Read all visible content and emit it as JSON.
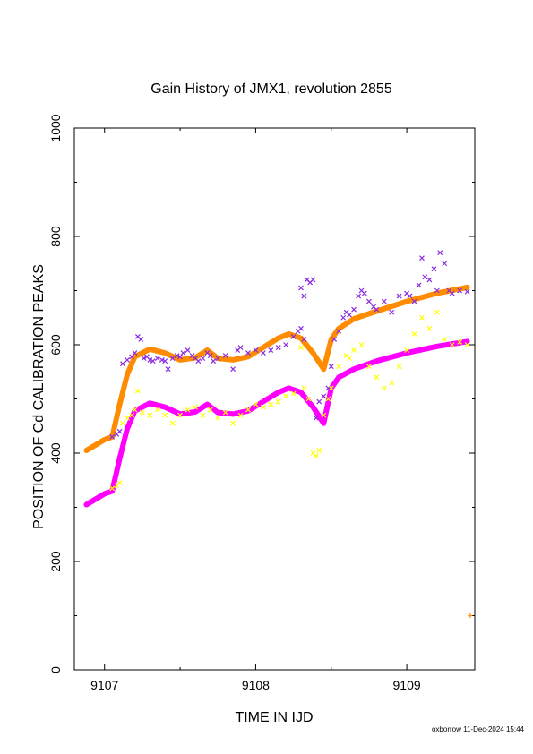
{
  "chart_data": {
    "type": "scatter",
    "title": "Gain History of JMX1, revolution 2855",
    "xlabel": "TIME IN IJD",
    "ylabel": "POSITION OF Cd CALIBRATION PEAKS",
    "xlim": [
      9106.8,
      9109.45
    ],
    "ylim": [
      0,
      1000
    ],
    "xticks": [
      {
        "value": 9107,
        "label": "9107"
      },
      {
        "value": 9108,
        "label": "9108"
      },
      {
        "value": 9109,
        "label": "9109"
      }
    ],
    "yticks": [
      {
        "value": 0,
        "label": "0"
      },
      {
        "value": 200,
        "label": "200"
      },
      {
        "value": 400,
        "label": "400"
      },
      {
        "value": 600,
        "label": "600"
      },
      {
        "value": 800,
        "label": "800"
      },
      {
        "value": 1000,
        "label": "1000"
      }
    ],
    "grid": false,
    "series": [
      {
        "marker": "x",
        "color": "#8a2be2",
        "points": [
          [
            9107.05,
            430
          ],
          [
            9107.08,
            435
          ],
          [
            9107.1,
            440
          ],
          [
            9107.12,
            565
          ],
          [
            9107.15,
            572
          ],
          [
            9107.18,
            578
          ],
          [
            9107.2,
            585
          ],
          [
            9107.22,
            615
          ],
          [
            9107.24,
            610
          ],
          [
            9107.26,
            575
          ],
          [
            9107.28,
            578
          ],
          [
            9107.3,
            572
          ],
          [
            9107.32,
            570
          ],
          [
            9107.35,
            575
          ],
          [
            9107.38,
            572
          ],
          [
            9107.4,
            570
          ],
          [
            9107.42,
            555
          ],
          [
            9107.45,
            575
          ],
          [
            9107.48,
            580
          ],
          [
            9107.5,
            578
          ],
          [
            9107.52,
            585
          ],
          [
            9107.55,
            590
          ],
          [
            9107.58,
            580
          ],
          [
            9107.6,
            575
          ],
          [
            9107.62,
            570
          ],
          [
            9107.65,
            575
          ],
          [
            9107.68,
            585
          ],
          [
            9107.7,
            580
          ],
          [
            9107.72,
            570
          ],
          [
            9107.75,
            575
          ],
          [
            9107.8,
            580
          ],
          [
            9107.85,
            555
          ],
          [
            9107.88,
            590
          ],
          [
            9107.9,
            595
          ],
          [
            9107.95,
            585
          ],
          [
            9108.0,
            590
          ],
          [
            9108.05,
            585
          ],
          [
            9108.1,
            590
          ],
          [
            9108.15,
            595
          ],
          [
            9108.2,
            600
          ],
          [
            9108.25,
            615
          ],
          [
            9108.28,
            625
          ],
          [
            9108.3,
            630
          ],
          [
            9108.32,
            610
          ],
          [
            9108.3,
            705
          ],
          [
            9108.32,
            690
          ],
          [
            9108.34,
            720
          ],
          [
            9108.36,
            715
          ],
          [
            9108.38,
            720
          ],
          [
            9108.4,
            465
          ],
          [
            9108.42,
            495
          ],
          [
            9108.45,
            505
          ],
          [
            9108.48,
            520
          ],
          [
            9108.5,
            560
          ],
          [
            9108.52,
            610
          ],
          [
            9108.55,
            625
          ],
          [
            9108.58,
            650
          ],
          [
            9108.6,
            660
          ],
          [
            9108.62,
            655
          ],
          [
            9108.65,
            665
          ],
          [
            9108.68,
            690
          ],
          [
            9108.7,
            700
          ],
          [
            9108.72,
            695
          ],
          [
            9108.75,
            680
          ],
          [
            9108.78,
            670
          ],
          [
            9108.8,
            665
          ],
          [
            9108.85,
            680
          ],
          [
            9108.9,
            660
          ],
          [
            9108.95,
            690
          ],
          [
            9109.0,
            695
          ],
          [
            9109.02,
            690
          ],
          [
            9109.05,
            680
          ],
          [
            9109.08,
            710
          ],
          [
            9109.1,
            760
          ],
          [
            9109.12,
            725
          ],
          [
            9109.15,
            720
          ],
          [
            9109.18,
            740
          ],
          [
            9109.2,
            700
          ],
          [
            9109.22,
            770
          ],
          [
            9109.25,
            750
          ],
          [
            9109.28,
            700
          ],
          [
            9109.3,
            695
          ],
          [
            9109.35,
            700
          ],
          [
            9109.4,
            698
          ]
        ]
      },
      {
        "marker": "x",
        "color": "#ffff00",
        "points": [
          [
            9107.05,
            335
          ],
          [
            9107.08,
            340
          ],
          [
            9107.1,
            345
          ],
          [
            9107.12,
            455
          ],
          [
            9107.15,
            465
          ],
          [
            9107.18,
            470
          ],
          [
            9107.2,
            480
          ],
          [
            9107.22,
            515
          ],
          [
            9107.25,
            475
          ],
          [
            9107.3,
            470
          ],
          [
            9107.35,
            480
          ],
          [
            9107.4,
            470
          ],
          [
            9107.45,
            455
          ],
          [
            9107.5,
            470
          ],
          [
            9107.55,
            480
          ],
          [
            9107.6,
            485
          ],
          [
            9107.65,
            470
          ],
          [
            9107.7,
            480
          ],
          [
            9107.75,
            465
          ],
          [
            9107.8,
            475
          ],
          [
            9107.85,
            455
          ],
          [
            9107.9,
            470
          ],
          [
            9107.95,
            480
          ],
          [
            9108.0,
            490
          ],
          [
            9108.05,
            485
          ],
          [
            9108.1,
            490
          ],
          [
            9108.15,
            495
          ],
          [
            9108.2,
            505
          ],
          [
            9108.25,
            510
          ],
          [
            9108.3,
            595
          ],
          [
            9108.32,
            520
          ],
          [
            9108.35,
            500
          ],
          [
            9108.38,
            400
          ],
          [
            9108.4,
            395
          ],
          [
            9108.42,
            405
          ],
          [
            9108.45,
            470
          ],
          [
            9108.48,
            500
          ],
          [
            9108.5,
            520
          ],
          [
            9108.55,
            560
          ],
          [
            9108.6,
            580
          ],
          [
            9108.62,
            575
          ],
          [
            9108.65,
            590
          ],
          [
            9108.7,
            600
          ],
          [
            9108.75,
            560
          ],
          [
            9108.8,
            540
          ],
          [
            9108.85,
            520
          ],
          [
            9108.9,
            530
          ],
          [
            9108.95,
            560
          ],
          [
            9109.0,
            590
          ],
          [
            9109.05,
            620
          ],
          [
            9109.1,
            650
          ],
          [
            9109.15,
            630
          ],
          [
            9109.2,
            660
          ],
          [
            9109.25,
            610
          ],
          [
            9109.3,
            600
          ],
          [
            9109.35,
            605
          ],
          [
            9109.4,
            600
          ]
        ]
      },
      {
        "marker": "+",
        "color": "#ff8c00",
        "points": [
          [
            9109.42,
            100
          ]
        ]
      }
    ],
    "fit_lines": [
      {
        "color": "#ff8c00",
        "points": [
          [
            9106.88,
            405
          ],
          [
            9107.0,
            425
          ],
          [
            9107.05,
            430
          ],
          [
            9107.1,
            490
          ],
          [
            9107.15,
            545
          ],
          [
            9107.2,
            578
          ],
          [
            9107.3,
            592
          ],
          [
            9107.4,
            585
          ],
          [
            9107.5,
            572
          ],
          [
            9107.6,
            576
          ],
          [
            9107.68,
            590
          ],
          [
            9107.75,
            575
          ],
          [
            9107.85,
            572
          ],
          [
            9107.95,
            578
          ],
          [
            9108.05,
            595
          ],
          [
            9108.15,
            612
          ],
          [
            9108.22,
            620
          ],
          [
            9108.3,
            612
          ],
          [
            9108.38,
            585
          ],
          [
            9108.45,
            555
          ],
          [
            9108.5,
            610
          ],
          [
            9108.55,
            630
          ],
          [
            9108.65,
            648
          ],
          [
            9108.8,
            662
          ],
          [
            9109.0,
            680
          ],
          [
            9109.2,
            695
          ],
          [
            9109.4,
            706
          ]
        ]
      },
      {
        "color": "#ff00ff",
        "points": [
          [
            9106.88,
            305
          ],
          [
            9107.0,
            325
          ],
          [
            9107.05,
            330
          ],
          [
            9107.1,
            390
          ],
          [
            9107.15,
            445
          ],
          [
            9107.2,
            478
          ],
          [
            9107.3,
            492
          ],
          [
            9107.4,
            485
          ],
          [
            9107.5,
            472
          ],
          [
            9107.6,
            476
          ],
          [
            9107.68,
            490
          ],
          [
            9107.75,
            475
          ],
          [
            9107.85,
            472
          ],
          [
            9107.95,
            478
          ],
          [
            9108.05,
            495
          ],
          [
            9108.15,
            512
          ],
          [
            9108.22,
            520
          ],
          [
            9108.3,
            512
          ],
          [
            9108.38,
            485
          ],
          [
            9108.45,
            455
          ],
          [
            9108.5,
            520
          ],
          [
            9108.55,
            540
          ],
          [
            9108.65,
            555
          ],
          [
            9108.8,
            570
          ],
          [
            9109.0,
            585
          ],
          [
            9109.2,
            597
          ],
          [
            9109.4,
            606
          ]
        ]
      }
    ]
  },
  "footer": {
    "text": "oxborrow 11-Dec-2024 15:44"
  }
}
